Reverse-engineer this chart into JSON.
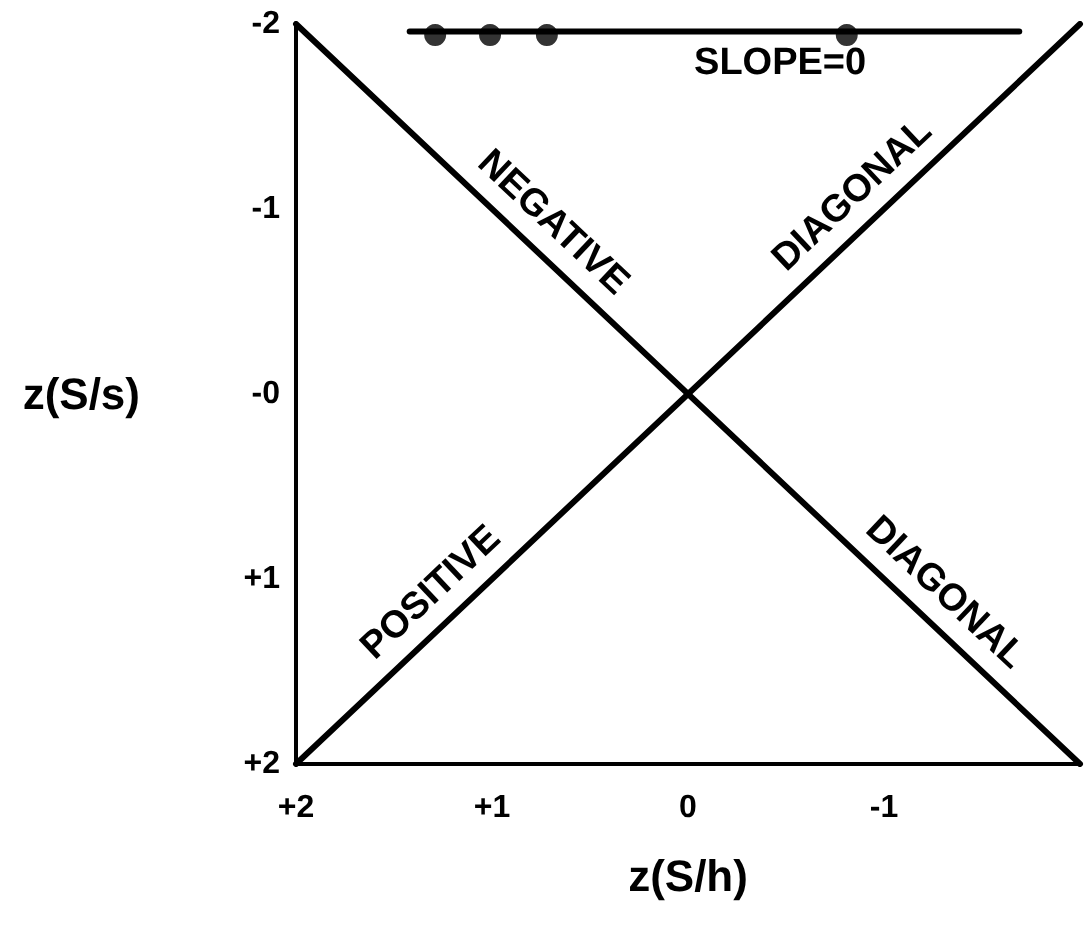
{
  "chart_data": {
    "type": "line",
    "xlabel": "z(S/h)",
    "ylabel": "z(S/s)",
    "xlim": [
      2,
      -2
    ],
    "ylim": [
      2,
      -2
    ],
    "xticks": [
      {
        "value": 2,
        "label": "+2"
      },
      {
        "value": 1,
        "label": "+1"
      },
      0,
      -1
    ],
    "yticks": [
      -2,
      -1,
      {
        "value": 0,
        "label": "-0"
      },
      {
        "value": 1,
        "label": "+1"
      },
      {
        "value": 2,
        "label": "+2"
      }
    ],
    "grid": false,
    "line_style": "solid",
    "series": [
      {
        "type": "line",
        "color": "#000000",
        "x": [
          2,
          -2
        ],
        "values": [
          2,
          -2
        ]
      },
      {
        "type": "line",
        "color": "#000000",
        "x": [
          2,
          -2
        ],
        "values": [
          -2,
          2
        ]
      },
      {
        "type": "line",
        "color": "#000000",
        "x": [
          1.42,
          -1.69
        ],
        "values": [
          -1.96,
          -1.96
        ]
      },
      {
        "type": "scatter",
        "color": "#000000",
        "x": [
          1.29,
          1.01,
          0.72,
          -0.81
        ],
        "values": [
          -1.94,
          -1.94,
          -1.94,
          -1.94
        ]
      }
    ],
    "annotations": [
      {
        "text": "SLOPE=0",
        "x": -0.47,
        "y": -1.96
      },
      {
        "text": "NEGATIVE",
        "x": 0.8,
        "y": -0.8
      },
      {
        "text": "DIAGONAL",
        "x": -0.95,
        "y": -0.95
      },
      {
        "text": "POSITIVE",
        "x": 1.2,
        "y": 1.2
      },
      {
        "text": "DIAGONAL",
        "x": -1.2,
        "y": 1.2
      }
    ]
  }
}
